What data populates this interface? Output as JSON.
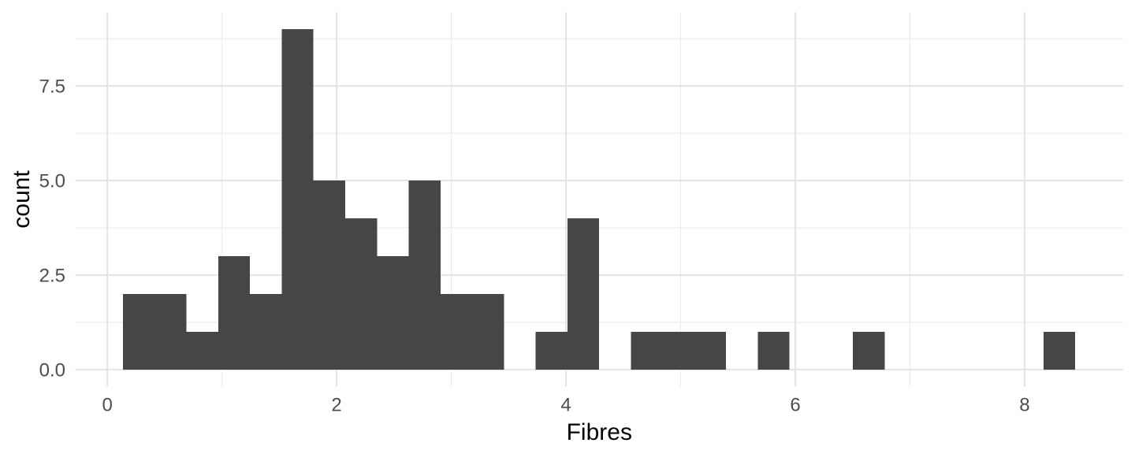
{
  "chart_data": {
    "type": "histogram",
    "title": "",
    "xlabel": "Fibres",
    "ylabel": "count",
    "bar_color": "#464646",
    "background_color": "#FFFFFF",
    "grid": {
      "major_color": "#E4E4E4",
      "minor_color": "#EDEDED",
      "grid_on": true
    },
    "axis_text_color": "#4D4D4D",
    "axis_title_color": "#000000",
    "x_ticks": {
      "values": [
        0,
        2,
        4,
        6,
        8
      ],
      "labels": [
        "0",
        "2",
        "4",
        "6",
        "8"
      ]
    },
    "y_ticks": {
      "values": [
        0,
        2.5,
        5,
        7.5
      ],
      "labels": [
        "0.0",
        "2.5",
        "5.0",
        "7.5"
      ]
    },
    "x_minor": [
      1,
      3,
      5,
      7
    ],
    "y_minor": [
      1.25,
      3.75,
      6.25,
      8.75
    ],
    "xlim": [
      -0.28,
      8.86
    ],
    "ylim": [
      -0.45,
      9.45
    ],
    "bins": {
      "start": 0.137,
      "binwidth": 0.2768,
      "counts": [
        2,
        2,
        1,
        3,
        2,
        9,
        5,
        4,
        3,
        5,
        2,
        2,
        0,
        1,
        4,
        0,
        1,
        1,
        1,
        0,
        1,
        0,
        0,
        1,
        0,
        0,
        0,
        0,
        0,
        1
      ]
    },
    "legend": null
  }
}
